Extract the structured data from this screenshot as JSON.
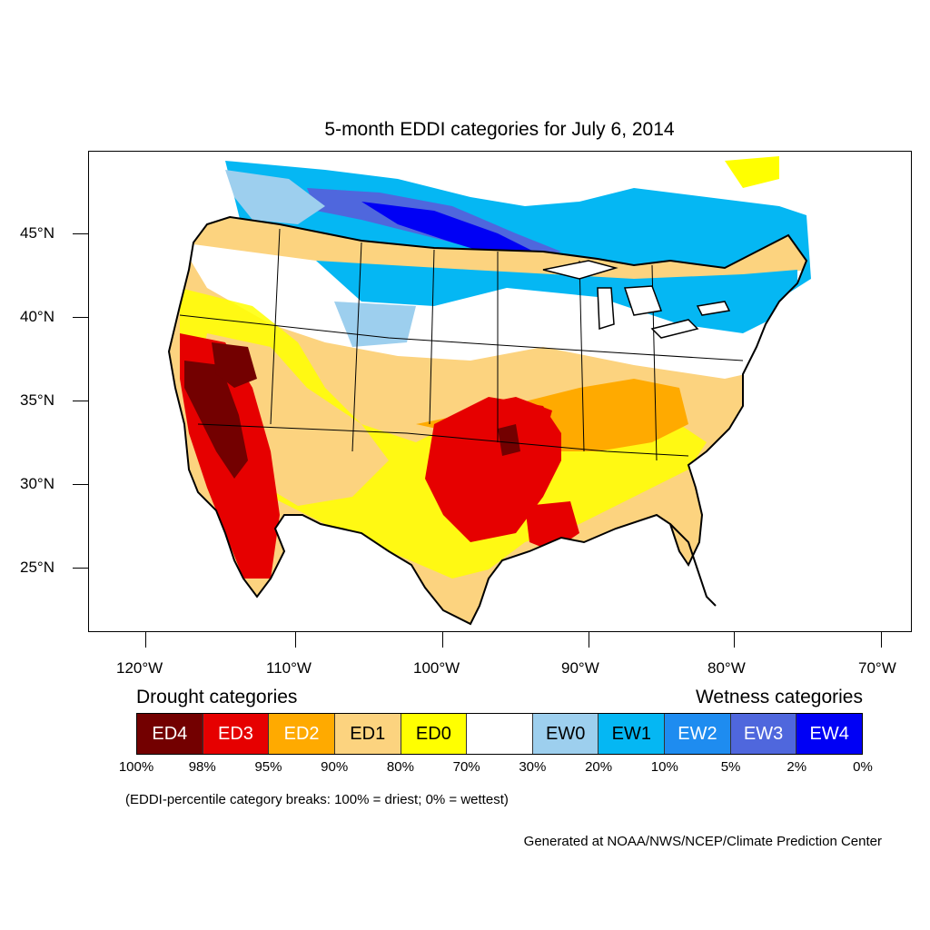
{
  "title": "5-month EDDI categories for July 6, 2014",
  "map": {
    "type": "drought map",
    "region": "CONUS",
    "lat_labels": [
      "45°N",
      "40°N",
      "35°N",
      "30°N",
      "25°N"
    ],
    "lon_labels": [
      "120°W",
      "110°W",
      "100°W",
      "90°W",
      "80°W",
      "70°W"
    ]
  },
  "legend": {
    "drought_heading": "Drought categories",
    "wetness_heading": "Wetness categories",
    "categories": [
      {
        "label": "ED4",
        "color": "#730000",
        "text_color": "#ffffff"
      },
      {
        "label": "ED3",
        "color": "#e60000",
        "text_color": "#ffffff"
      },
      {
        "label": "ED2",
        "color": "#ffaa00",
        "text_color": "#ffffff"
      },
      {
        "label": "ED1",
        "color": "#fcd37f",
        "text_color": "#000000"
      },
      {
        "label": "ED0",
        "color": "#ffff00",
        "text_color": "#000000"
      },
      {
        "label": "",
        "color": "#ffffff",
        "text_color": "#000000"
      },
      {
        "label": "EW0",
        "color": "#9dcfee",
        "text_color": "#000000"
      },
      {
        "label": "EW1",
        "color": "#05b7f3",
        "text_color": "#000000"
      },
      {
        "label": "EW2",
        "color": "#1e8cf0",
        "text_color": "#ffffff"
      },
      {
        "label": "EW3",
        "color": "#4f67dd",
        "text_color": "#ffffff"
      },
      {
        "label": "EW4",
        "color": "#0000f5",
        "text_color": "#ffffff"
      }
    ],
    "breaks": [
      "100%",
      "98%",
      "95%",
      "90%",
      "80%",
      "70%",
      "30%",
      "20%",
      "10%",
      "5%",
      "2%",
      "0%"
    ]
  },
  "note": "(EDDI-percentile category breaks: 100% = driest; 0% = wettest)",
  "credit": "Generated at NOAA/NWS/NCEP/Climate Prediction Center"
}
